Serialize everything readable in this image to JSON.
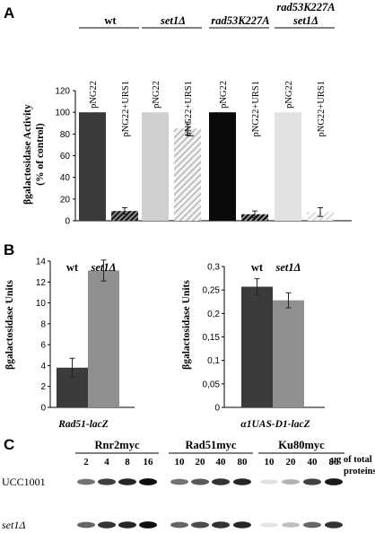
{
  "panels": {
    "A": "A",
    "B": "B",
    "C": "C"
  },
  "colors": {
    "wt": "#3a3a3a",
    "set1": "#cfcfcf",
    "rad53": "#0a0a0a",
    "rad53set1": "#e2e2e2",
    "b_wt": "#3b3b3b",
    "b_set1": "#8f8f8f"
  },
  "chart_data": [
    {
      "type": "bar",
      "panel": "A",
      "ylabel_line1": "βgalactosidase Activity",
      "ylabel_line2": "(% of control)",
      "ylim": [
        0,
        120
      ],
      "yticks": [
        "0",
        "20",
        "40",
        "60",
        "80",
        "100",
        "120"
      ],
      "grid": false,
      "groups": [
        {
          "header": "wt",
          "header_italic": false,
          "bars": [
            {
              "label": "pNG22",
              "value": 100,
              "err": 0,
              "fill": "wt"
            },
            {
              "label": "pNG22+URS1",
              "value": 9,
              "err": 3,
              "fill": "hatch-wt"
            }
          ]
        },
        {
          "header": "set1Δ",
          "header_italic": true,
          "bars": [
            {
              "label": "pNG22",
              "value": 100,
              "err": 0,
              "fill": "set1"
            },
            {
              "label": "pNG22+URS1",
              "value": 85,
              "err": 6,
              "fill": "hatch-set1"
            }
          ]
        },
        {
          "header": "rad53K227A",
          "header_italic": true,
          "bars": [
            {
              "label": "pNG22",
              "value": 100,
              "err": 0,
              "fill": "rad53"
            },
            {
              "label": "pNG22+URS1",
              "value": 6,
              "err": 3,
              "fill": "hatch-rad53"
            }
          ]
        },
        {
          "header": "rad53K227A",
          "header2": "set1Δ",
          "header_italic": true,
          "bars": [
            {
              "label": "pNG22",
              "value": 100,
              "err": 0,
              "fill": "rad53set1"
            },
            {
              "label": "pNG22+URS1",
              "value": 8,
              "err": 4,
              "fill": "hatch-rad53set1"
            }
          ]
        }
      ]
    },
    {
      "type": "bar",
      "panel": "B-left",
      "ylabel": "βgalactosidase Units",
      "xlabel": "Rad51-lacZ",
      "ylim": [
        0,
        14
      ],
      "yticks": [
        "0",
        "2",
        "4",
        "6",
        "8",
        "10",
        "12",
        "14"
      ],
      "grid": false,
      "series": [
        {
          "name": "wt",
          "name_italic": false,
          "value": 3.8,
          "err": 0.9,
          "fill": "b_wt"
        },
        {
          "name": "set1Δ",
          "name_italic": true,
          "value": 13.1,
          "err": 1.0,
          "fill": "b_set1"
        }
      ]
    },
    {
      "type": "bar",
      "panel": "B-right",
      "ylabel": "βgalactosidase Units",
      "xlabel": "α1UAS-D1-lacZ",
      "ylim": [
        0,
        0.3
      ],
      "yticks": [
        "0",
        "0,05",
        "0,1",
        "0,15",
        "0,2",
        "0,25",
        "0,3"
      ],
      "grid": false,
      "series": [
        {
          "name": "wt",
          "name_italic": false,
          "value": 0.257,
          "err": 0.017,
          "fill": "b_wt"
        },
        {
          "name": "set1Δ",
          "name_italic": true,
          "value": 0.228,
          "err": 0.016,
          "fill": "b_set1"
        }
      ]
    }
  ],
  "western": {
    "groups": [
      {
        "name": "Rnr2myc",
        "lanes": [
          "2",
          "4",
          "8",
          "16"
        ]
      },
      {
        "name": "Rad51myc",
        "lanes": [
          "10",
          "20",
          "40",
          "80"
        ]
      },
      {
        "name": "Ku80myc",
        "lanes": [
          "10",
          "20",
          "40",
          "80"
        ]
      }
    ],
    "unit_line1": "μg of total",
    "unit_line2": "proteins",
    "rows": [
      {
        "label": "UCC1001",
        "label_italic": false,
        "intensities": [
          0.55,
          0.75,
          0.85,
          0.95,
          0.55,
          0.65,
          0.8,
          0.85,
          0.12,
          0.3,
          0.75,
          0.9
        ]
      },
      {
        "label": "set1Δ",
        "label_italic": true,
        "intensities": [
          0.6,
          0.8,
          0.85,
          0.95,
          0.6,
          0.7,
          0.8,
          0.85,
          0.1,
          0.25,
          0.6,
          0.8
        ]
      }
    ]
  }
}
